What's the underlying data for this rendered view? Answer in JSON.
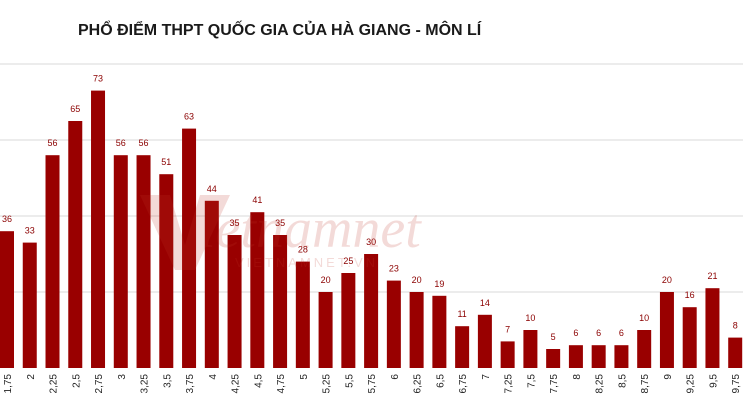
{
  "chart_data": {
    "type": "bar",
    "title": "PHỔ ĐIỂM THPT QUỐC GIA CỦA  HÀ GIANG - MÔN LÍ",
    "categories": [
      "1,75",
      "2",
      "2,25",
      "2,5",
      "2,75",
      "3",
      "3,25",
      "3,5",
      "3,75",
      "4",
      "4,25",
      "4,5",
      "4,75",
      "5",
      "5,25",
      "5,5",
      "5,75",
      "6",
      "6,25",
      "6,5",
      "6,75",
      "7",
      "7,25",
      "7,5",
      "7,75",
      "8",
      "8,25",
      "8,5",
      "8,75",
      "9",
      "9,25",
      "9,5",
      "9,75"
    ],
    "values": [
      36,
      33,
      56,
      65,
      73,
      56,
      56,
      51,
      63,
      44,
      35,
      41,
      35,
      28,
      20,
      25,
      30,
      23,
      20,
      19,
      11,
      14,
      7,
      10,
      5,
      6,
      6,
      6,
      10,
      20,
      16,
      21,
      8
    ],
    "ylim": [
      0,
      80
    ],
    "grid": true,
    "bar_color": "#990000",
    "label_color": "#8b0000"
  },
  "watermark": {
    "brand": "vietnamnet",
    "domain": "VIETNAMNET.VN",
    "color": "#c0392b"
  }
}
